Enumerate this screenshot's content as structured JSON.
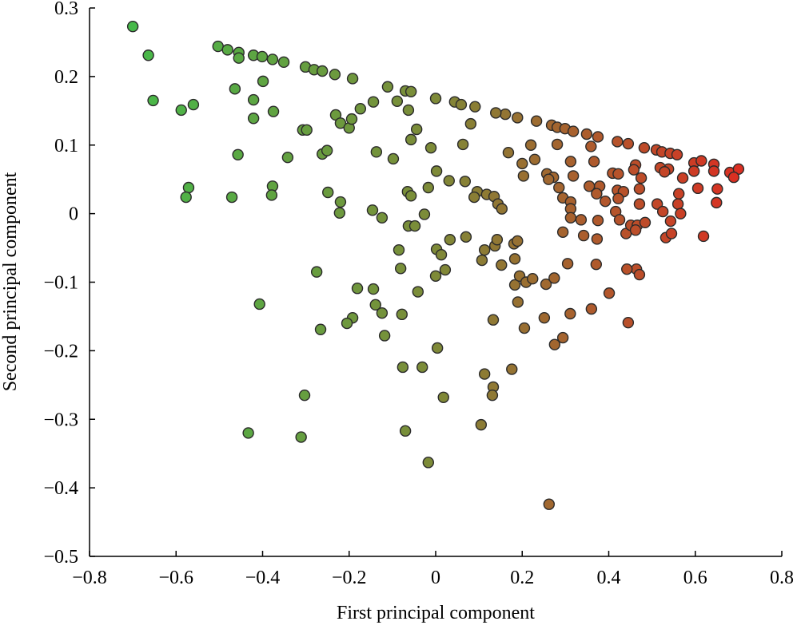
{
  "chart_data": {
    "type": "scatter",
    "xlabel": "First principal component",
    "ylabel": "Second principal component",
    "xlim": [
      -0.8,
      0.8
    ],
    "ylim": [
      -0.5,
      0.3
    ],
    "xticks": [
      {
        "value": -0.8,
        "label": "−0.8"
      },
      {
        "value": -0.6,
        "label": "−0.6"
      },
      {
        "value": -0.4,
        "label": "−0.4"
      },
      {
        "value": -0.2,
        "label": "−0.2"
      },
      0,
      0.2,
      0.4,
      0.6,
      0.8
    ],
    "yticks": [
      {
        "value": -0.5,
        "label": "−0.5"
      },
      {
        "value": -0.4,
        "label": "−0.4"
      },
      {
        "value": -0.3,
        "label": "−0.3"
      },
      {
        "value": -0.2,
        "label": "−0.2"
      },
      {
        "value": -0.1,
        "label": "−0.1"
      },
      0,
      0.1,
      0.2,
      0.3
    ],
    "grid": false,
    "colormap": [
      "#3fc04c",
      "#7e8a38",
      "#e8221f"
    ],
    "edgecolor": "#2b2b2b",
    "x": [
      -0.7,
      -0.664,
      -0.653,
      -0.588,
      -0.56,
      -0.571,
      -0.577,
      -0.503,
      -0.481,
      -0.455,
      -0.455,
      -0.421,
      -0.401,
      -0.377,
      -0.351,
      -0.301,
      -0.281,
      -0.262,
      -0.233,
      -0.192,
      -0.464,
      -0.399,
      -0.421,
      -0.375,
      -0.421,
      -0.457,
      -0.471,
      -0.377,
      -0.379,
      -0.407,
      -0.433,
      -0.342,
      -0.307,
      -0.298,
      -0.262,
      -0.251,
      -0.231,
      -0.22,
      -0.2,
      -0.194,
      -0.174,
      -0.144,
      -0.111,
      -0.089,
      -0.07,
      -0.057,
      -0.063,
      -0.044,
      0,
      -0.057,
      -0.011,
      -0.137,
      -0.098,
      -0.249,
      -0.22,
      -0.222,
      -0.146,
      -0.124,
      -0.275,
      -0.181,
      -0.144,
      -0.139,
      -0.124,
      -0.192,
      -0.205,
      -0.118,
      -0.266,
      -0.303,
      -0.311,
      -0.085,
      -0.081,
      -0.078,
      -0.076,
      -0.07,
      -0.065,
      -0.057,
      -0.063,
      -0.048,
      -0.026,
      -0.017,
      0.002,
      0.031,
      -0.041,
      -0.031,
      0.004,
      0.018,
      -0.017,
      0.002,
      0.013,
      0,
      0.022,
      0.033,
      0.07,
      0.044,
      0.059,
      0.091,
      0.081,
      0.063,
      0.068,
      0.096,
      0.089,
      0.118,
      0.135,
      0.144,
      0.153,
      0.107,
      0.113,
      0.137,
      0.152,
      0.142,
      0.181,
      0.189,
      0.183,
      0.183,
      0.19,
      0.194,
      0.209,
      0.224,
      0.176,
      0.133,
      0.205,
      0.113,
      0.133,
      0.131,
      0.105,
      0.262,
      0.275,
      0.294,
      0.251,
      0.255,
      0.274,
      0.305,
      0.311,
      0.342,
      0.371,
      0.36,
      0.401,
      0.445,
      0.464,
      0.471,
      0.442,
      0.373,
      0.294,
      0.294,
      0.161,
      0.139,
      0.189,
      0.233,
      0.268,
      0.281,
      0.299,
      0.318,
      0.349,
      0.375,
      0.42,
      0.445,
      0.482,
      0.51,
      0.523,
      0.542,
      0.558,
      0.597,
      0.614,
      0.643,
      0.68,
      0.7,
      0.689,
      0.168,
      0.2,
      0.22,
      0.229,
      0.203,
      0.257,
      0.272,
      0.261,
      0.281,
      0.312,
      0.318,
      0.285,
      0.312,
      0.312,
      0.312,
      0.336,
      0.359,
      0.366,
      0.355,
      0.379,
      0.372,
      0.392,
      0.375,
      0.416,
      0.425,
      0.409,
      0.422,
      0.42,
      0.434,
      0.422,
      0.44,
      0.451,
      0.466,
      0.462,
      0.484,
      0.471,
      0.475,
      0.471,
      0.462,
      0.458,
      0.512,
      0.525,
      0.538,
      0.519,
      0.529,
      0.543,
      0.532,
      0.545,
      0.562,
      0.56,
      0.566,
      0.571,
      0.597,
      0.606,
      0.619,
      0.651,
      0.649,
      0.643
    ],
    "values": [
      0.273,
      0.231,
      0.165,
      0.151,
      0.159,
      0.038,
      0.024,
      0.244,
      0.239,
      0.235,
      0.227,
      0.231,
      0.229,
      0.225,
      0.221,
      0.214,
      0.21,
      0.208,
      0.203,
      0.197,
      0.182,
      0.193,
      0.166,
      0.149,
      0.139,
      0.086,
      0.024,
      0.04,
      0.027,
      -0.132,
      -0.32,
      0.082,
      0.122,
      0.122,
      0.087,
      0.092,
      0.144,
      0.132,
      0.125,
      0.138,
      0.153,
      0.163,
      0.185,
      0.164,
      0.179,
      0.178,
      0.151,
      0.123,
      0.168,
      0.108,
      0.096,
      0.09,
      0.08,
      0.031,
      0.017,
      0.001,
      0.005,
      -0.006,
      -0.085,
      -0.109,
      -0.11,
      -0.133,
      -0.145,
      -0.152,
      -0.16,
      -0.178,
      -0.169,
      -0.265,
      -0.326,
      -0.053,
      -0.08,
      -0.147,
      -0.224,
      -0.317,
      0.032,
      0.026,
      -0.018,
      -0.018,
      -0.001,
      0.038,
      0.062,
      0.048,
      -0.114,
      -0.224,
      -0.196,
      -0.268,
      -0.363,
      -0.052,
      -0.06,
      -0.091,
      -0.082,
      -0.038,
      -0.034,
      0.163,
      0.159,
      0.156,
      0.131,
      0.101,
      0.047,
      0.032,
      0.024,
      0.028,
      0.025,
      0.014,
      0.007,
      -0.068,
      -0.053,
      -0.047,
      -0.075,
      -0.038,
      -0.044,
      -0.04,
      -0.066,
      -0.104,
      -0.129,
      -0.091,
      -0.1,
      -0.095,
      -0.227,
      -0.155,
      -0.167,
      -0.234,
      -0.253,
      -0.265,
      -0.308,
      -0.424,
      -0.191,
      -0.181,
      -0.152,
      -0.103,
      -0.094,
      -0.073,
      -0.146,
      -0.032,
      -0.074,
      -0.139,
      -0.116,
      -0.159,
      -0.081,
      -0.089,
      -0.081,
      -0.037,
      -0.027,
      0.023,
      0.145,
      0.147,
      0.14,
      0.135,
      0.129,
      0.126,
      0.124,
      0.12,
      0.116,
      0.112,
      0.105,
      0.102,
      0.096,
      0.093,
      0.09,
      0.088,
      0.086,
      0.074,
      0.077,
      0.072,
      0.06,
      0.065,
      0.053,
      0.089,
      0.073,
      0.1,
      0.079,
      0.055,
      0.058,
      0.053,
      0.05,
      0.101,
      0.076,
      0.055,
      0.038,
      0.017,
      0.007,
      -0.006,
      -0.009,
      0.098,
      0.076,
      0.04,
      0.04,
      0.029,
      0.018,
      -0.01,
      0.003,
      -0.009,
      0.059,
      0.058,
      0.034,
      0.032,
      0.022,
      -0.029,
      -0.017,
      -0.017,
      -0.024,
      -0.013,
      0.036,
      0.052,
      0.014,
      0.071,
      0.064,
      0.014,
      0.003,
      0.065,
      0.067,
      0.061,
      -0.011,
      -0.035,
      -0.029,
      0.029,
      0.014,
      0,
      0.052,
      0.062,
      0.037,
      -0.033,
      0.036,
      0.016,
      0.062
    ]
  }
}
